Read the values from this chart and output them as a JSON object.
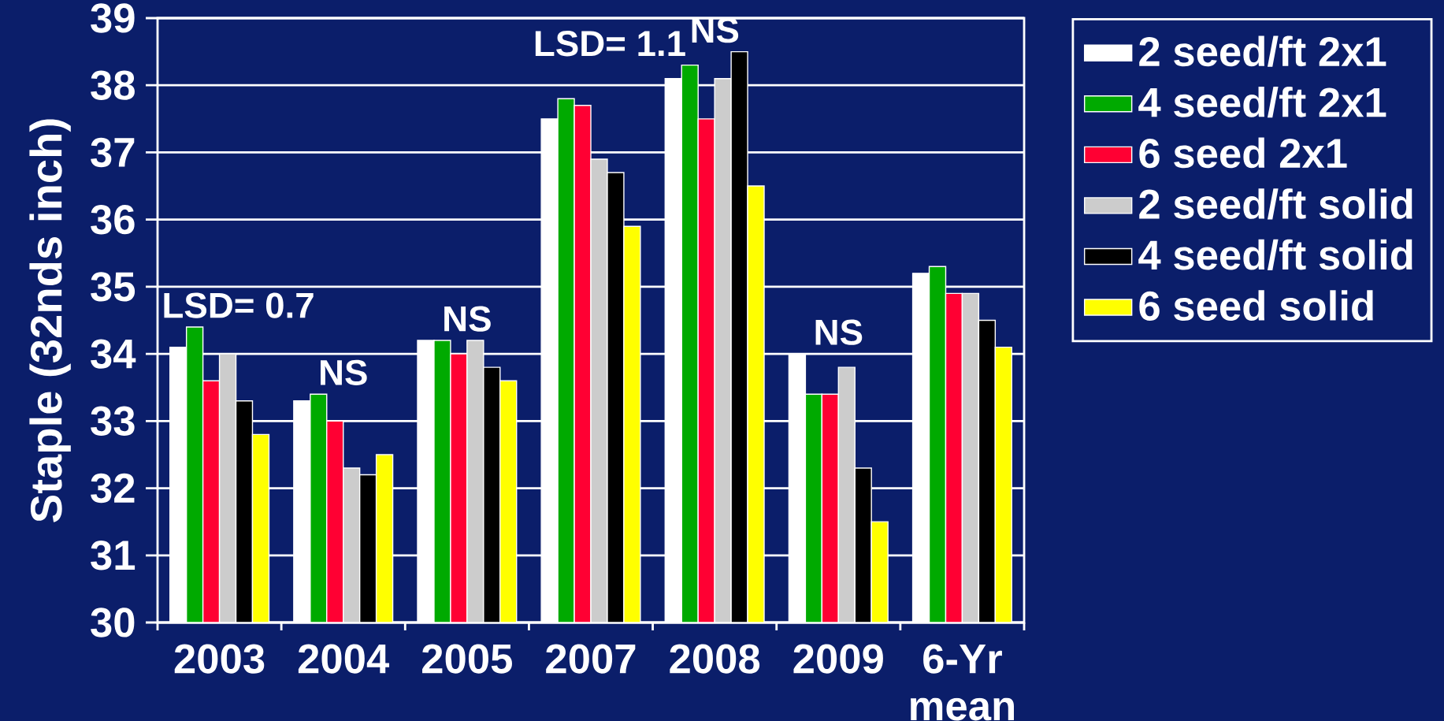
{
  "chart_data": {
    "type": "bar",
    "ylabel": "Staple (32nds inch)",
    "categories": [
      "2003",
      "2004",
      "2005",
      "2007",
      "2008",
      "2009",
      "6-Yr mean"
    ],
    "series": [
      {
        "name": "2 seed/ft 2x1",
        "color": "#ffffff",
        "values": [
          34.1,
          33.3,
          34.2,
          37.5,
          38.1,
          34.0,
          35.2
        ]
      },
      {
        "name": "4 seed/ft 2x1",
        "color": "#00aa00",
        "values": [
          34.4,
          33.4,
          34.2,
          37.8,
          38.3,
          33.4,
          35.3
        ]
      },
      {
        "name": "6 seed 2x1",
        "color": "#ff0033",
        "values": [
          33.6,
          33.0,
          34.0,
          37.7,
          37.5,
          33.4,
          34.9
        ]
      },
      {
        "name": "2 seed/ft solid",
        "color": "#cccccc",
        "values": [
          34.0,
          32.3,
          34.2,
          36.9,
          38.1,
          33.8,
          34.9
        ]
      },
      {
        "name": "4 seed/ft solid",
        "color": "#000000",
        "values": [
          33.3,
          32.2,
          33.8,
          36.7,
          38.5,
          32.3,
          34.5
        ]
      },
      {
        "name": "6 seed solid",
        "color": "#ffff00",
        "values": [
          32.8,
          32.5,
          33.6,
          35.9,
          36.5,
          31.5,
          34.1
        ]
      }
    ],
    "ylim": [
      30,
      39
    ],
    "yticks": [
      30,
      31,
      32,
      33,
      34,
      35,
      36,
      37,
      38,
      39
    ],
    "grid": "y",
    "legend": "top right",
    "annotations": [
      "LSD= 0.7",
      "NS",
      "NS",
      "LSD= 1.1",
      "NS",
      "NS"
    ]
  }
}
